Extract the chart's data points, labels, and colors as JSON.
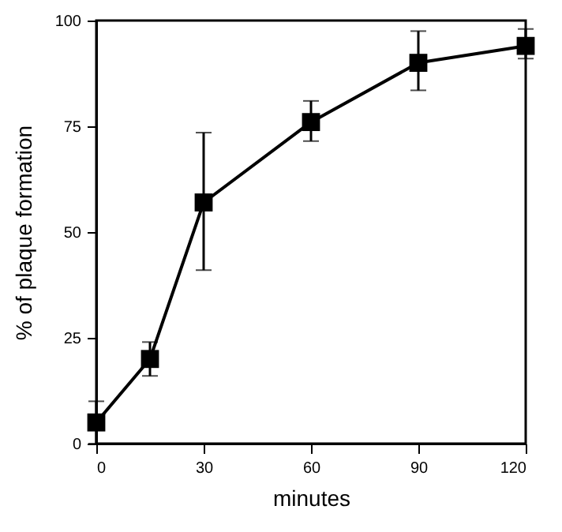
{
  "chart_data": {
    "type": "line",
    "xlabel": "minutes",
    "ylabel": "% of plaque formation",
    "x": [
      0,
      15,
      30,
      60,
      90,
      120
    ],
    "series": [
      {
        "color": "#000000",
        "values": [
          5,
          20,
          57,
          76,
          90,
          94
        ],
        "errors": [
          [
            0,
            10
          ],
          [
            16,
            24
          ],
          [
            41,
            73.5
          ],
          [
            71.5,
            81
          ],
          [
            83.5,
            97.5
          ],
          [
            91,
            98
          ]
        ]
      }
    ],
    "xlim": [
      0,
      120
    ],
    "xticks": [
      0,
      30,
      60,
      90,
      120
    ],
    "ylim": [
      0,
      100
    ],
    "yticks": [
      0,
      25,
      50,
      75,
      100
    ],
    "grid": false,
    "marker": "square",
    "line_style": "solid"
  }
}
